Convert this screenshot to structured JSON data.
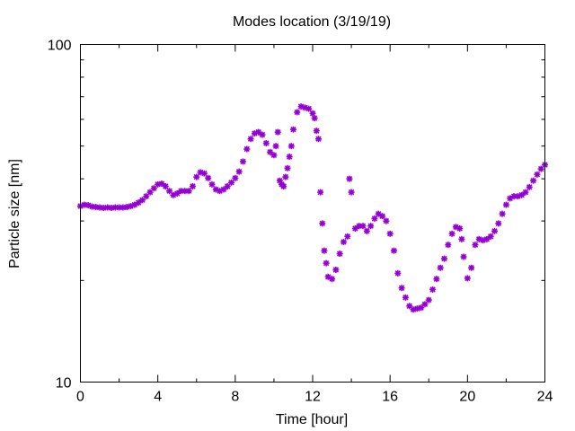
{
  "chart_data": {
    "type": "scatter",
    "title": "Modes location (3/19/19)",
    "xlabel": "Time [hour]",
    "ylabel": "Particle size [nm]",
    "xlim": [
      0,
      24
    ],
    "ylim": [
      10,
      100
    ],
    "yscale": "log",
    "xticks": [
      0,
      4,
      8,
      12,
      16,
      20,
      24
    ],
    "xtick_labels": [
      "0",
      "4",
      "8",
      "12",
      "16",
      "20",
      "24"
    ],
    "yticks": [
      10,
      100
    ],
    "ytick_labels": [
      "10",
      "100"
    ],
    "grid": false,
    "legend": "none",
    "marker": "asterisk",
    "series": [
      {
        "color": "#9400d3",
        "points": [
          [
            0.0,
            33.2
          ],
          [
            0.2,
            33.5
          ],
          [
            0.4,
            33.4
          ],
          [
            0.6,
            33.1
          ],
          [
            0.8,
            33.0
          ],
          [
            1.0,
            32.9
          ],
          [
            1.2,
            32.8
          ],
          [
            1.4,
            32.9
          ],
          [
            1.6,
            32.8
          ],
          [
            1.8,
            32.9
          ],
          [
            2.0,
            32.9
          ],
          [
            2.2,
            32.9
          ],
          [
            2.4,
            33.0
          ],
          [
            2.6,
            33.2
          ],
          [
            2.8,
            33.5
          ],
          [
            3.0,
            34.0
          ],
          [
            3.2,
            34.6
          ],
          [
            3.4,
            35.5
          ],
          [
            3.6,
            36.5
          ],
          [
            3.8,
            37.5
          ],
          [
            4.0,
            38.5
          ],
          [
            4.2,
            38.7
          ],
          [
            4.4,
            38.0
          ],
          [
            4.6,
            36.8
          ],
          [
            4.8,
            35.8
          ],
          [
            5.0,
            36.2
          ],
          [
            5.2,
            36.8
          ],
          [
            5.4,
            36.8
          ],
          [
            5.6,
            36.8
          ],
          [
            5.8,
            38.0
          ],
          [
            6.0,
            40.5
          ],
          [
            6.2,
            41.8
          ],
          [
            6.4,
            41.5
          ],
          [
            6.6,
            40.2
          ],
          [
            6.8,
            38.5
          ],
          [
            7.0,
            37.2
          ],
          [
            7.2,
            36.8
          ],
          [
            7.4,
            37.2
          ],
          [
            7.6,
            38.0
          ],
          [
            7.8,
            39.0
          ],
          [
            8.0,
            40.2
          ],
          [
            8.2,
            42.0
          ],
          [
            8.4,
            45.0
          ],
          [
            8.6,
            49.0
          ],
          [
            8.8,
            52.5
          ],
          [
            9.0,
            54.5
          ],
          [
            9.2,
            55.0
          ],
          [
            9.4,
            54.0
          ],
          [
            9.6,
            51.0
          ],
          [
            9.8,
            48.0
          ],
          [
            10.0,
            47.0
          ],
          [
            10.1,
            50.0
          ],
          [
            10.2,
            55.0
          ],
          [
            10.3,
            39.5
          ],
          [
            10.4,
            38.5
          ],
          [
            10.5,
            38.0
          ],
          [
            10.6,
            40.5
          ],
          [
            10.7,
            43.0
          ],
          [
            10.8,
            46.5
          ],
          [
            10.9,
            50.0
          ],
          [
            11.0,
            56.0
          ],
          [
            11.2,
            63.0
          ],
          [
            11.4,
            65.5
          ],
          [
            11.6,
            65.0
          ],
          [
            11.8,
            64.5
          ],
          [
            12.0,
            62.5
          ],
          [
            12.1,
            60.5
          ],
          [
            12.2,
            55.5
          ],
          [
            12.3,
            52.5
          ],
          [
            12.4,
            36.5
          ],
          [
            12.5,
            29.5
          ],
          [
            12.6,
            24.5
          ],
          [
            12.7,
            22.5
          ],
          [
            12.8,
            20.5
          ],
          [
            13.0,
            20.2
          ],
          [
            13.2,
            21.5
          ],
          [
            13.4,
            24.0
          ],
          [
            13.6,
            26.0
          ],
          [
            13.8,
            27.0
          ],
          [
            13.9,
            40.0
          ],
          [
            14.0,
            36.5
          ],
          [
            14.2,
            28.5
          ],
          [
            14.4,
            29.0
          ],
          [
            14.6,
            29.0
          ],
          [
            14.8,
            28.0
          ],
          [
            15.0,
            29.0
          ],
          [
            15.2,
            30.5
          ],
          [
            15.4,
            31.5
          ],
          [
            15.6,
            31.0
          ],
          [
            15.8,
            30.0
          ],
          [
            16.0,
            27.5
          ],
          [
            16.2,
            24.5
          ],
          [
            16.4,
            21.0
          ],
          [
            16.6,
            19.0
          ],
          [
            16.8,
            17.8
          ],
          [
            17.0,
            16.8
          ],
          [
            17.2,
            16.4
          ],
          [
            17.4,
            16.5
          ],
          [
            17.6,
            16.6
          ],
          [
            17.8,
            17.0
          ],
          [
            18.0,
            17.5
          ],
          [
            18.2,
            18.8
          ],
          [
            18.4,
            20.2
          ],
          [
            18.6,
            21.8
          ],
          [
            18.8,
            23.2
          ],
          [
            19.0,
            25.5
          ],
          [
            19.2,
            27.5
          ],
          [
            19.4,
            28.8
          ],
          [
            19.6,
            28.5
          ],
          [
            19.7,
            26.5
          ],
          [
            19.8,
            23.5
          ],
          [
            20.0,
            20.3
          ],
          [
            20.2,
            21.8
          ],
          [
            20.4,
            25.5
          ],
          [
            20.6,
            26.5
          ],
          [
            20.8,
            26.3
          ],
          [
            21.0,
            26.5
          ],
          [
            21.2,
            27.0
          ],
          [
            21.4,
            28.0
          ],
          [
            21.6,
            29.5
          ],
          [
            21.8,
            31.5
          ],
          [
            22.0,
            33.5
          ],
          [
            22.2,
            35.0
          ],
          [
            22.4,
            35.5
          ],
          [
            22.6,
            35.5
          ],
          [
            22.8,
            35.8
          ],
          [
            23.0,
            36.5
          ],
          [
            23.2,
            37.8
          ],
          [
            23.4,
            39.5
          ],
          [
            23.6,
            41.2
          ],
          [
            23.8,
            42.8
          ],
          [
            24.0,
            44.0
          ]
        ]
      }
    ]
  }
}
